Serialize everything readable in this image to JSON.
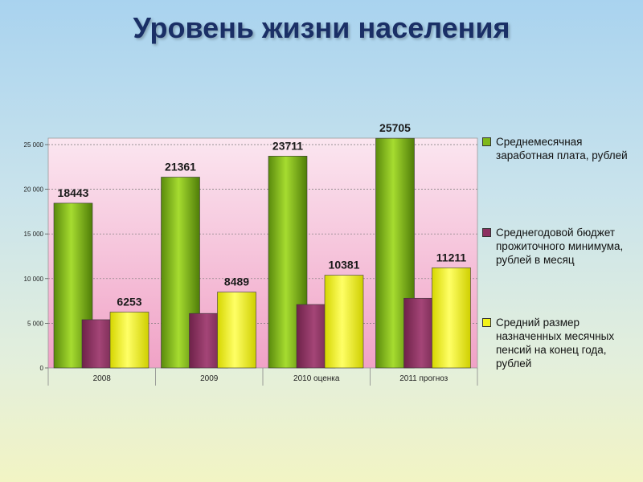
{
  "title": "Уровень жизни населения",
  "chart_data": {
    "type": "bar",
    "categories": [
      "2008",
      "2009",
      "2010 оценка",
      "2011 прогноз"
    ],
    "ylim": [
      0,
      25000
    ],
    "yticks": [
      0,
      5000,
      10000,
      15000,
      20000,
      25000
    ],
    "ytick_labels": [
      "0",
      "5 000",
      "10 000",
      "15 000",
      "20 000",
      "25 000"
    ],
    "grid": true,
    "legend_position": "right",
    "series": [
      {
        "name": "Среднемесячная заработная плата, рублей",
        "values": [
          18443,
          21361,
          23711,
          25705
        ],
        "labels": [
          "18443",
          "21361",
          "23711",
          "25705"
        ],
        "color": "#7fb81a"
      },
      {
        "name": "Среднегодовой бюджет прожиточного минимума, рублей в месяц",
        "values": [
          5400,
          6100,
          7100,
          7800
        ],
        "labels": [
          "",
          "",
          "",
          ""
        ],
        "color": "#8c3060"
      },
      {
        "name": "Средний размер назначенных месячных пенсий на конец года, рублей",
        "values": [
          6253,
          8489,
          10381,
          11211
        ],
        "labels": [
          "6253",
          "8489",
          "10381",
          "11211"
        ],
        "color": "#f2f21a"
      }
    ]
  }
}
